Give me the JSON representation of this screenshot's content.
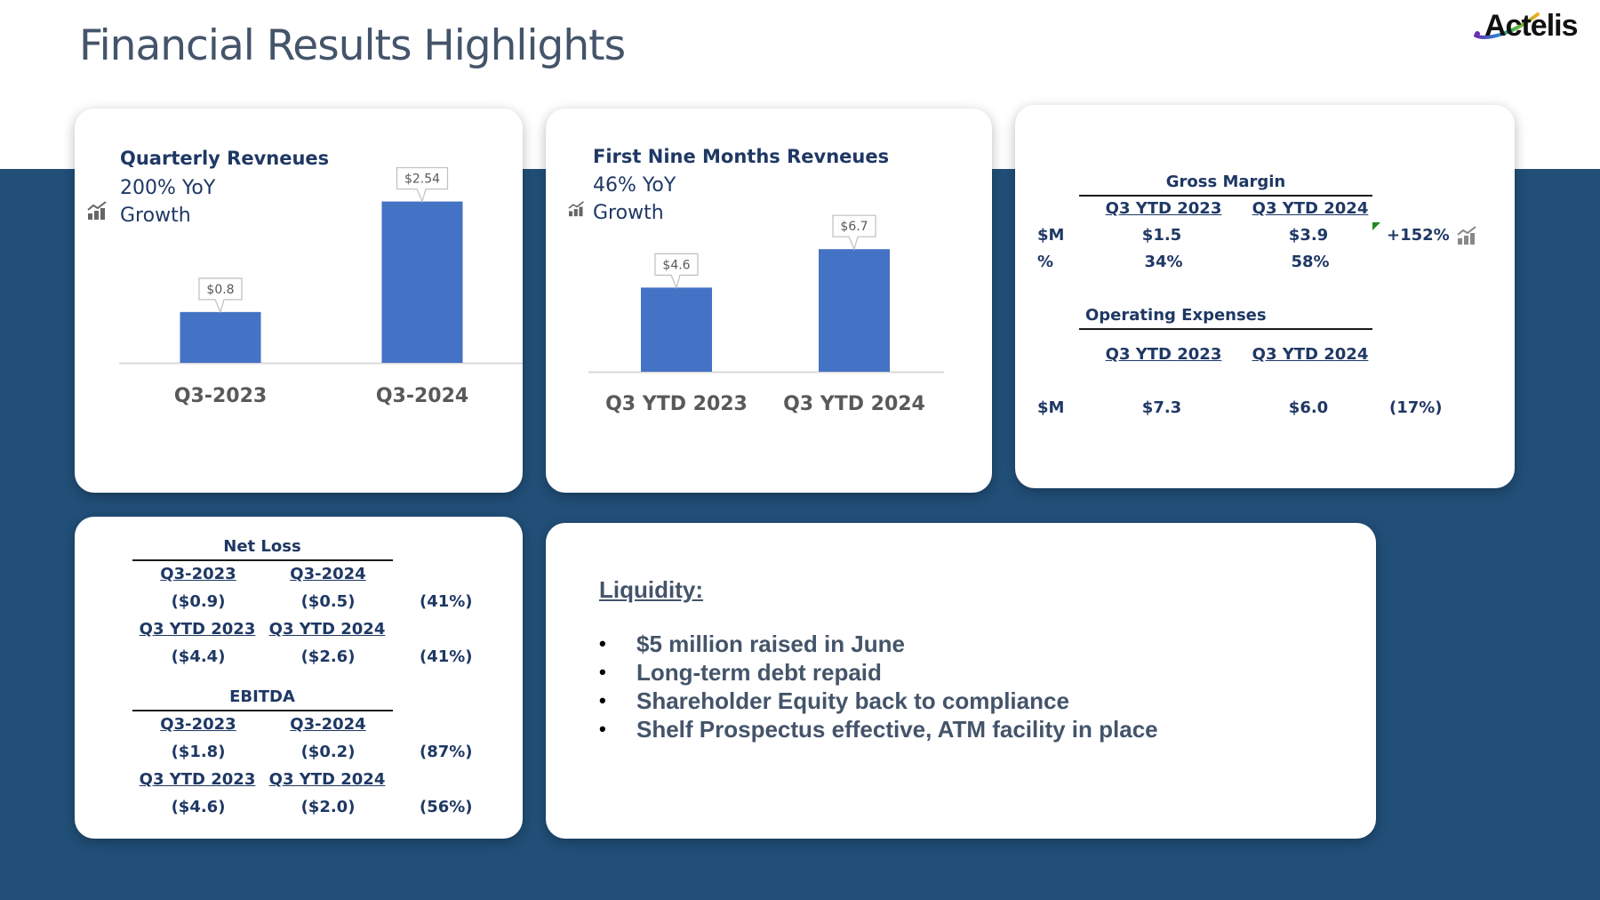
{
  "page": {
    "title": "Financial Results Highlights",
    "logo_text": "Actelis",
    "colors": {
      "band": "#214f78",
      "bar": "#4472c4",
      "text_dark_blue": "#1f3864",
      "title_gray": "#44546a",
      "increase_marker": "#1e8a1e"
    }
  },
  "quarterly": {
    "title": "Quarterly Revneues",
    "sub1": "200% YoY",
    "sub2": "Growth",
    "icon": "growth-chart-icon"
  },
  "nine_months": {
    "title": "First Nine Months Revneues",
    "sub1": "46% YoY",
    "sub2": "Growth",
    "icon": "growth-chart-icon"
  },
  "chart_data": [
    {
      "type": "bar",
      "title": "Quarterly Revneues",
      "categories": [
        "Q3-2023",
        "Q3-2024"
      ],
      "values": [
        0.8,
        2.54
      ],
      "value_labels": [
        "$0.8",
        "$2.54"
      ],
      "xlabel": "",
      "ylabel": "",
      "ylim": [
        0,
        2.8
      ],
      "grid": false,
      "unit": "$M"
    },
    {
      "type": "bar",
      "title": "First Nine Months Revneues",
      "categories": [
        "Q3 YTD 2023",
        "Q3 YTD 2024"
      ],
      "values": [
        4.6,
        6.7
      ],
      "value_labels": [
        "$4.6",
        "$6.7"
      ],
      "xlabel": "",
      "ylabel": "",
      "ylim": [
        0,
        10.5
      ],
      "grid": false,
      "unit": "$M"
    }
  ],
  "gross_margin": {
    "heading": "Gross Margin",
    "col1": "Q3 YTD 2023",
    "col2": "Q3 YTD 2024",
    "rows": [
      {
        "label": "$M",
        "v1": "$1.5",
        "v2": "$3.9",
        "change": "+152%"
      },
      {
        "label": "%",
        "v1": "34%",
        "v2": "58%",
        "change": ""
      }
    ],
    "icon": "growth-chart-icon"
  },
  "opex": {
    "heading": "Operating Expenses",
    "col1": "Q3 YTD 2023",
    "col2": "Q3 YTD 2024",
    "rows": [
      {
        "label": "$M",
        "v1": "$7.3",
        "v2": "$6.0",
        "change": "(17%)"
      }
    ]
  },
  "net_loss": {
    "heading": "Net Loss",
    "blocks": [
      {
        "col1": "Q3-2023",
        "col2": "Q3-2024",
        "v1": "($0.9)",
        "v2": "($0.5)",
        "change": "(41%)"
      },
      {
        "col1": "Q3 YTD 2023",
        "col2": "Q3 YTD 2024",
        "v1": "($4.4)",
        "v2": "($2.6)",
        "change": "(41%)"
      }
    ]
  },
  "ebitda": {
    "heading": "EBITDA",
    "blocks": [
      {
        "col1": "Q3-2023",
        "col2": "Q3-2024",
        "v1": "($1.8)",
        "v2": "($0.2)",
        "change": "(87%)"
      },
      {
        "col1": "Q3 YTD 2023",
        "col2": "Q3 YTD 2024",
        "v1": "($4.6)",
        "v2": "($2.0)",
        "change": "(56%)"
      }
    ]
  },
  "liquidity": {
    "title": "Liquidity:",
    "items": [
      "$5 million raised in June",
      "Long-term debt repaid",
      "Shareholder Equity back to compliance",
      "Shelf Prospectus effective, ATM facility in place"
    ]
  }
}
